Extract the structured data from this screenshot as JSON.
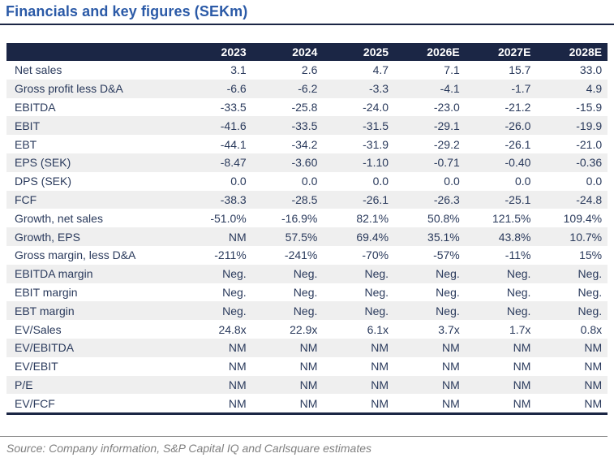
{
  "title": "Financials and key figures (SEKm)",
  "source": "Source: Company information, S&P Capital IQ and Carlsquare estimates",
  "colors": {
    "title_blue": "#2b5aa7",
    "header_navy": "#1b2645",
    "body_text_navy": "#2a3a5c",
    "stripe_gray": "#efefef",
    "source_gray": "#7f7f7f"
  },
  "table": {
    "columns": [
      "",
      "2023",
      "2024",
      "2025",
      "2026E",
      "2027E",
      "2028E"
    ],
    "rows": [
      {
        "label": "Net sales",
        "values": [
          "3.1",
          "2.6",
          "4.7",
          "7.1",
          "15.7",
          "33.0"
        ]
      },
      {
        "label": "Gross profit less D&A",
        "values": [
          "-6.6",
          "-6.2",
          "-3.3",
          "-4.1",
          "-1.7",
          "4.9"
        ]
      },
      {
        "label": "EBITDA",
        "values": [
          "-33.5",
          "-25.8",
          "-24.0",
          "-23.0",
          "-21.2",
          "-15.9"
        ]
      },
      {
        "label": "EBIT",
        "values": [
          "-41.6",
          "-33.5",
          "-31.5",
          "-29.1",
          "-26.0",
          "-19.9"
        ]
      },
      {
        "label": "EBT",
        "values": [
          "-44.1",
          "-34.2",
          "-31.9",
          "-29.2",
          "-26.1",
          "-21.0"
        ]
      },
      {
        "label": "EPS (SEK)",
        "values": [
          "-8.47",
          "-3.60",
          "-1.10",
          "-0.71",
          "-0.40",
          "-0.36"
        ]
      },
      {
        "label": "DPS (SEK)",
        "values": [
          "0.0",
          "0.0",
          "0.0",
          "0.0",
          "0.0",
          "0.0"
        ]
      },
      {
        "label": "FCF",
        "values": [
          "-38.3",
          "-28.5",
          "-26.1",
          "-26.3",
          "-25.1",
          "-24.8"
        ]
      },
      {
        "label": "Growth, net sales",
        "values": [
          "-51.0%",
          "-16.9%",
          "82.1%",
          "50.8%",
          "121.5%",
          "109.4%"
        ]
      },
      {
        "label": "Growth, EPS",
        "values": [
          "NM",
          "57.5%",
          "69.4%",
          "35.1%",
          "43.8%",
          "10.7%"
        ]
      },
      {
        "label": "Gross margin, less D&A",
        "values": [
          "-211%",
          "-241%",
          "-70%",
          "-57%",
          "-11%",
          "15%"
        ]
      },
      {
        "label": "EBITDA margin",
        "values": [
          "Neg.",
          "Neg.",
          "Neg.",
          "Neg.",
          "Neg.",
          "Neg."
        ]
      },
      {
        "label": "EBIT margin",
        "values": [
          "Neg.",
          "Neg.",
          "Neg.",
          "Neg.",
          "Neg.",
          "Neg."
        ]
      },
      {
        "label": "EBT margin",
        "values": [
          "Neg.",
          "Neg.",
          "Neg.",
          "Neg.",
          "Neg.",
          "Neg."
        ]
      },
      {
        "label": "EV/Sales",
        "values": [
          "24.8x",
          "22.9x",
          "6.1x",
          "3.7x",
          "1.7x",
          "0.8x"
        ]
      },
      {
        "label": "EV/EBITDA",
        "values": [
          "NM",
          "NM",
          "NM",
          "NM",
          "NM",
          "NM"
        ]
      },
      {
        "label": "EV/EBIT",
        "values": [
          "NM",
          "NM",
          "NM",
          "NM",
          "NM",
          "NM"
        ]
      },
      {
        "label": "P/E",
        "values": [
          "NM",
          "NM",
          "NM",
          "NM",
          "NM",
          "NM"
        ]
      },
      {
        "label": "EV/FCF",
        "values": [
          "NM",
          "NM",
          "NM",
          "NM",
          "NM",
          "NM"
        ]
      }
    ]
  }
}
